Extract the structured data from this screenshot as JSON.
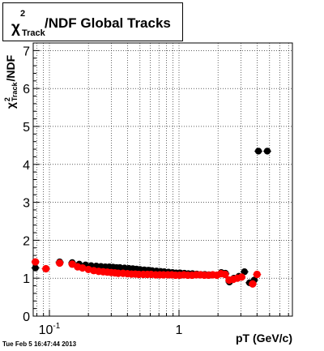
{
  "title": {
    "symbol": "χ",
    "superscript": "2",
    "subscript": "Track",
    "text": "/NDF  Global Tracks"
  },
  "y_axis_label": {
    "symbol": "χ",
    "superscript": "2",
    "subscript": "Track",
    "text": "/NDF"
  },
  "x_axis_label": "pT (GeV/c)",
  "datestamp": "Tue Feb  5 16:47:44 2013",
  "colors": {
    "series_black": "#000000",
    "series_red": "#ff0000",
    "grid": "#000000"
  },
  "chart_data": {
    "type": "scatter",
    "title": "χ²_Track/NDF  Global Tracks",
    "xlabel": "pT (GeV/c)",
    "ylabel": "χ²_Track/NDF",
    "x_scale": "log",
    "xlim": [
      0.075,
      7.5
    ],
    "ylim": [
      0,
      7.2
    ],
    "grid": true,
    "x_ticks": [
      {
        "value": 0.1,
        "base": "10",
        "exp": "-1"
      },
      {
        "value": 1,
        "base": "1",
        "exp": ""
      }
    ],
    "y_ticks": [
      0,
      1,
      2,
      3,
      4,
      5,
      6,
      7
    ],
    "series": [
      {
        "color": "#000000",
        "x": [
          0.078,
          0.094,
          0.12,
          0.15,
          0.17,
          0.19,
          0.21,
          0.23,
          0.25,
          0.27,
          0.29,
          0.31,
          0.33,
          0.35,
          0.38,
          0.41,
          0.44,
          0.47,
          0.5,
          0.54,
          0.58,
          0.62,
          0.67,
          0.72,
          0.77,
          0.83,
          0.89,
          0.95,
          1.02,
          1.1,
          1.18,
          1.27,
          1.37,
          1.47,
          1.58,
          1.7,
          1.83,
          1.97,
          2.12,
          2.28,
          2.45,
          2.65,
          2.9,
          3.2,
          3.5,
          3.8,
          4.1,
          4.8
        ],
        "y": [
          1.27,
          1.25,
          1.43,
          1.41,
          1.37,
          1.35,
          1.33,
          1.32,
          1.31,
          1.3,
          1.3,
          1.29,
          1.28,
          1.28,
          1.27,
          1.26,
          1.25,
          1.24,
          1.23,
          1.22,
          1.21,
          1.2,
          1.19,
          1.18,
          1.17,
          1.16,
          1.15,
          1.14,
          1.14,
          1.13,
          1.12,
          1.12,
          1.11,
          1.1,
          1.1,
          1.09,
          1.09,
          1.08,
          1.15,
          1.13,
          0.9,
          1.0,
          1.05,
          1.17,
          0.88,
          0.95,
          4.35,
          4.35
        ]
      },
      {
        "color": "#ff0000",
        "x": [
          0.078,
          0.094,
          0.12,
          0.15,
          0.165,
          0.18,
          0.2,
          0.22,
          0.24,
          0.26,
          0.28,
          0.3,
          0.32,
          0.34,
          0.37,
          0.4,
          0.43,
          0.46,
          0.49,
          0.53,
          0.57,
          0.61,
          0.66,
          0.71,
          0.76,
          0.82,
          0.88,
          0.94,
          1.01,
          1.09,
          1.17,
          1.26,
          1.36,
          1.46,
          1.57,
          1.69,
          1.82,
          1.96,
          2.11,
          2.27,
          2.44,
          2.62,
          2.82,
          3.04,
          3.7,
          4.0
        ],
        "y": [
          1.43,
          1.25,
          1.4,
          1.37,
          1.3,
          1.27,
          1.23,
          1.2,
          1.18,
          1.17,
          1.16,
          1.15,
          1.14,
          1.13,
          1.13,
          1.12,
          1.11,
          1.11,
          1.1,
          1.1,
          1.1,
          1.1,
          1.09,
          1.09,
          1.09,
          1.09,
          1.09,
          1.08,
          1.08,
          1.09,
          1.08,
          1.08,
          1.09,
          1.09,
          1.08,
          1.08,
          1.09,
          1.08,
          1.12,
          1.1,
          0.95,
          0.97,
          1.0,
          1.03,
          0.85,
          1.1
        ]
      }
    ]
  }
}
